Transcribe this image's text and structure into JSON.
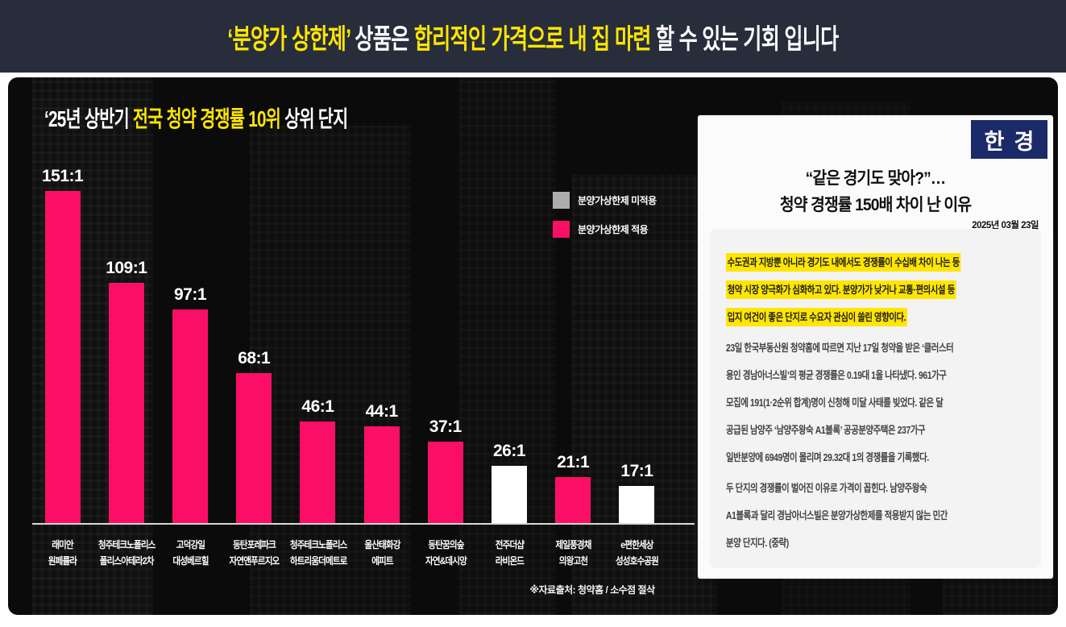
{
  "header": {
    "part1": "‘분양가 상한제’",
    "part2": " 상품은 ",
    "part3": "합리적인 가격으로 내 집 마련",
    "part4": " 할 수 있는 기회 입니다"
  },
  "chart": {
    "title_part1": "‘25년 상반기 ",
    "title_part2": "전국 청약 경쟁률 10위",
    "title_part3": " 상위 단지"
  },
  "chart_data": {
    "type": "bar",
    "title": "‘25년 상반기 전국 청약 경쟁률 10위 상위 단지",
    "categories": [
      "래미안 원페를라",
      "청주테크노폴리스 폴리스아테라2차",
      "고덕강일 대성베르힐",
      "동탄포레파크 자연앤푸르지오",
      "청주테크노폴리스 하트리움더메트로",
      "울산태화강 에피트",
      "동탄꿈의숲 자연&데시앙",
      "전주더샵 라비온드",
      "제일풍경채 의왕고천",
      "e편한세상 성성호수공원"
    ],
    "categories_lines": [
      {
        "l1": "래미안",
        "l2": "원페를라"
      },
      {
        "l1": "청주테크노폴리스",
        "l2": "폴리스아테라2차"
      },
      {
        "l1": "고덕강일",
        "l2": "대성베르힐"
      },
      {
        "l1": "동탄포레파크",
        "l2": "자연앤푸르지오"
      },
      {
        "l1": "청주테크노폴리스",
        "l2": "하트리움더메트로"
      },
      {
        "l1": "울산태화강",
        "l2": "에피트"
      },
      {
        "l1": "동탄꿈의숲",
        "l2": "자연&데시앙"
      },
      {
        "l1": "전주더샵",
        "l2": "라비온드"
      },
      {
        "l1": "제일풍경채",
        "l2": "의왕고천"
      },
      {
        "l1": "e편한세상",
        "l2": "성성호수공원"
      }
    ],
    "values": [
      151,
      109,
      97,
      68,
      46,
      44,
      37,
      26,
      21,
      17
    ],
    "value_labels": [
      "151:1",
      "109:1",
      "97:1",
      "68:1",
      "46:1",
      "44:1",
      "37:1",
      "26:1",
      "21:1",
      "17:1"
    ],
    "applied_flags": [
      true,
      true,
      true,
      true,
      true,
      true,
      true,
      false,
      true,
      false
    ],
    "colors": {
      "applied": "#FB0F66",
      "not_applied": "#FFFFFF"
    },
    "legend": [
      {
        "label": "분양가상한제 미적용",
        "color": "#ACACAC"
      },
      {
        "label": "분양가상한제 적용",
        "color": "#FB0F66"
      }
    ],
    "legend_position": "top-right",
    "grid": false,
    "ylim": [
      0,
      160
    ],
    "xlabel": "",
    "ylabel": "",
    "source_note": "※자료출처: 청약홈 / 소수점 절삭"
  },
  "article": {
    "publisher": "한경",
    "title_line1": "“같은 경기도 맞아?”…",
    "title_line2": "청약 경쟁률 150배 차이 난 이유",
    "date": "2025년 03월 23일",
    "highlight_lines": [
      "수도권과 지방뿐 아니라 경기도 내에서도 경쟁률이 수십배 차이 나는 등",
      "청약 시장 양극화가 심화하고 있다. 분양가가 낮거나 교통·편의시설 등",
      "입지 여건이 좋은 단지로 수요자 관심이 쏠린 영향이다."
    ],
    "para2_lines": [
      "23일 한국부동산원 청약홈에 따르면 지난 17일 청약을 받은 ‘클러스터",
      "용인 경남아너스빌’의 평균 경쟁률은 0.19대 1을 나타냈다. 961가구",
      "모집에 191(1·2순위 합계)명이 신청해 미달 사태를 빚었다. 같은 달",
      "공급된 남양주 ‘남양주왕숙 A1블록’ 공공분양주택은 237가구",
      "일반분양에 6949명이 몰리며 29.32대 1의 경쟁률을 기록했다."
    ],
    "para3_lines": [
      "두 단지의 경쟁률이 벌어진 이유로 가격이 꼽힌다. 남양주왕숙",
      "A1블록과 달리 경남아너스빌은 분양가상한제를 적용받지 않는 민간",
      "분양 단지다. (중략)"
    ]
  }
}
